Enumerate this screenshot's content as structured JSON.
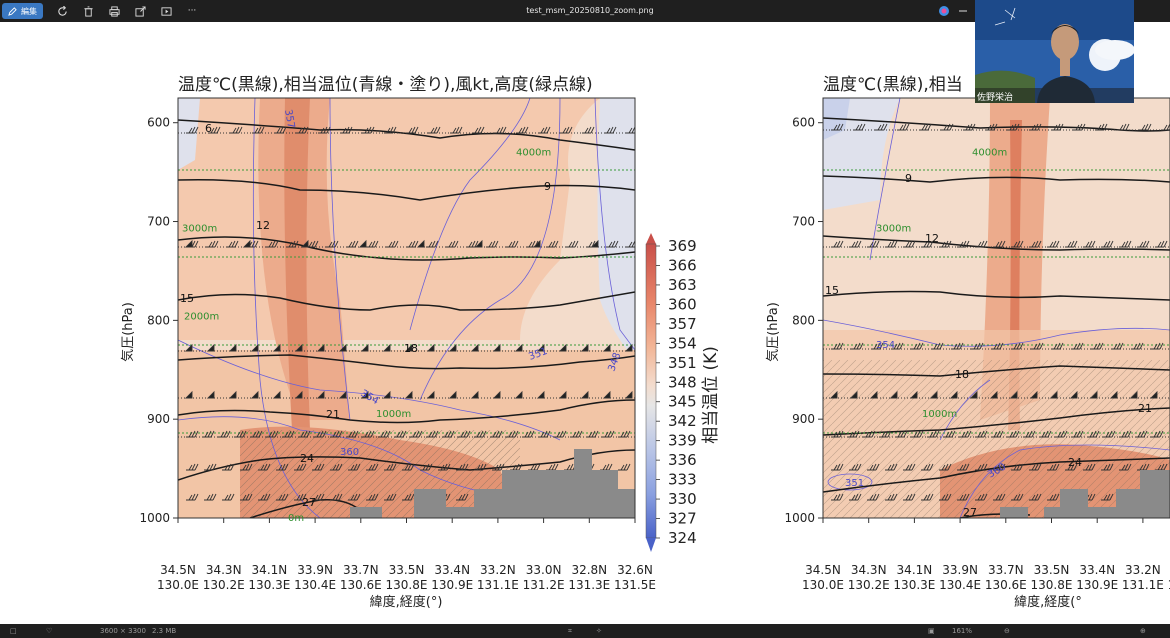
{
  "window": {
    "file_title": "test_msm_20250810_zoom.png",
    "edit_label": "編集",
    "more_label": "···"
  },
  "chart_data": [
    {
      "type": "heatmap",
      "title": "温度℃(黒線),相当温位(青線・塗り),風kt,高度(緑点線)",
      "xlabel": "緯度,経度(°)",
      "ylabel": "気圧(hPa)",
      "y_ticks": [
        "600",
        "700",
        "800",
        "900",
        "1000"
      ],
      "ylim": [
        1000,
        575
      ],
      "x_ticks": [
        {
          "lat": "34.5N",
          "lon": "130.0E"
        },
        {
          "lat": "34.3N",
          "lon": "130.2E"
        },
        {
          "lat": "34.1N",
          "lon": "130.3E"
        },
        {
          "lat": "33.9N",
          "lon": "130.4E"
        },
        {
          "lat": "33.7N",
          "lon": "130.6E"
        },
        {
          "lat": "33.5N",
          "lon": "130.8E"
        },
        {
          "lat": "33.4N",
          "lon": "130.9E"
        },
        {
          "lat": "33.2N",
          "lon": "131.1E"
        },
        {
          "lat": "33.0N",
          "lon": "131.2E"
        },
        {
          "lat": "32.8N",
          "lon": "131.3E"
        },
        {
          "lat": "32.6N",
          "lon": "131.5E"
        }
      ],
      "colorbar": {
        "label": "相当温位 (K)",
        "ticks": [
          369,
          366,
          363,
          360,
          357,
          354,
          351,
          348,
          345,
          342,
          339,
          336,
          333,
          330,
          327,
          324
        ]
      },
      "height_lines": [
        {
          "label": "4000m",
          "p": 630
        },
        {
          "label": "3000m",
          "p": 707
        },
        {
          "label": "2000m",
          "p": 796
        },
        {
          "label": "1000m",
          "p": 895
        },
        {
          "label": "0m",
          "p": 1000
        }
      ],
      "temperature_labels": [
        "6",
        "9",
        "12",
        "15",
        "18",
        "21",
        "24",
        "27"
      ],
      "theta_e_labels": [
        "348",
        "351",
        "354",
        "357",
        "360"
      ]
    },
    {
      "type": "heatmap",
      "title": "温度℃(黒線),相当",
      "xlabel": "緯度,経度(°",
      "ylabel": "気圧(hPa)",
      "y_ticks": [
        "600",
        "700",
        "800",
        "900",
        "1000"
      ],
      "ylim": [
        1000,
        575
      ],
      "x_ticks": [
        {
          "lat": "34.5N",
          "lon": "130.0E"
        },
        {
          "lat": "34.3N",
          "lon": "130.2E"
        },
        {
          "lat": "34.1N",
          "lon": "130.3E"
        },
        {
          "lat": "33.9N",
          "lon": "130.4E"
        },
        {
          "lat": "33.7N",
          "lon": "130.6E"
        },
        {
          "lat": "33.5N",
          "lon": "130.8E"
        },
        {
          "lat": "33.4N",
          "lon": "130.9E"
        },
        {
          "lat": "33.2N",
          "lon": "131.1E"
        },
        {
          "lat": "33.1N",
          "lon": "131.1E"
        }
      ],
      "height_lines": [
        {
          "label": "4000m",
          "p": 630
        },
        {
          "label": "3000m",
          "p": 707
        },
        {
          "label": "1000m",
          "p": 895
        }
      ],
      "temperature_labels": [
        "9",
        "12",
        "15",
        "18",
        "21",
        "24",
        "27"
      ],
      "theta_e_labels": [
        "351",
        "354",
        "360"
      ]
    }
  ],
  "video": {
    "name": "佐野栄治"
  },
  "status": {
    "dimensions": "3600 × 3300",
    "size": "2.3 MB",
    "zoom": "161%"
  },
  "colors": {
    "warm": "#e9926e",
    "hot": "#d66f52",
    "neutral": "#f1d9c8",
    "cool": "#dde2ee",
    "terrain": "#8a8a8a",
    "theta_line": "#5a5acf",
    "height_line": "#2f8f2f"
  }
}
